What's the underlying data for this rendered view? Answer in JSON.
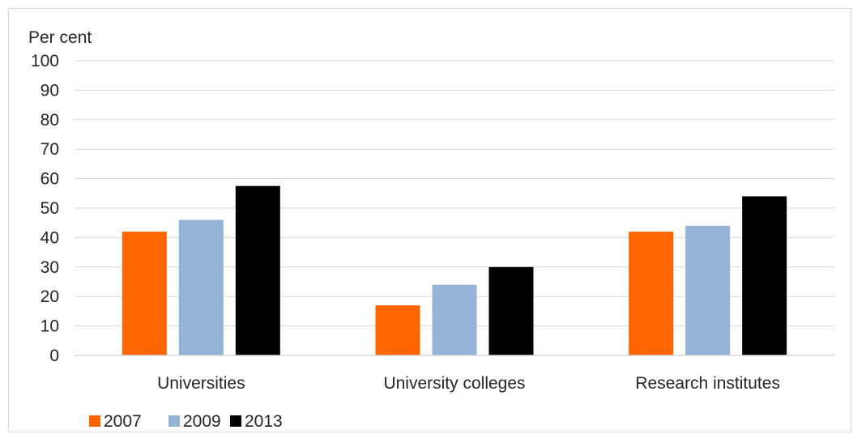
{
  "chart_data": {
    "type": "bar",
    "ylabel": "Per cent",
    "xlabel": "",
    "ylim": [
      0,
      100
    ],
    "yticks": [
      0,
      10,
      20,
      30,
      40,
      50,
      60,
      70,
      80,
      90,
      100
    ],
    "grid": true,
    "legend_position": "bottom-left",
    "categories": [
      "Universities",
      "University colleges",
      "Research institutes"
    ],
    "series": [
      {
        "name": "2007",
        "color": "#ff6600",
        "values": [
          42,
          17,
          42
        ]
      },
      {
        "name": "2009",
        "color": "#95b3d7",
        "values": [
          46,
          24,
          44
        ]
      },
      {
        "name": "2013",
        "color": "#000000",
        "values": [
          57.5,
          30,
          54
        ]
      }
    ]
  }
}
